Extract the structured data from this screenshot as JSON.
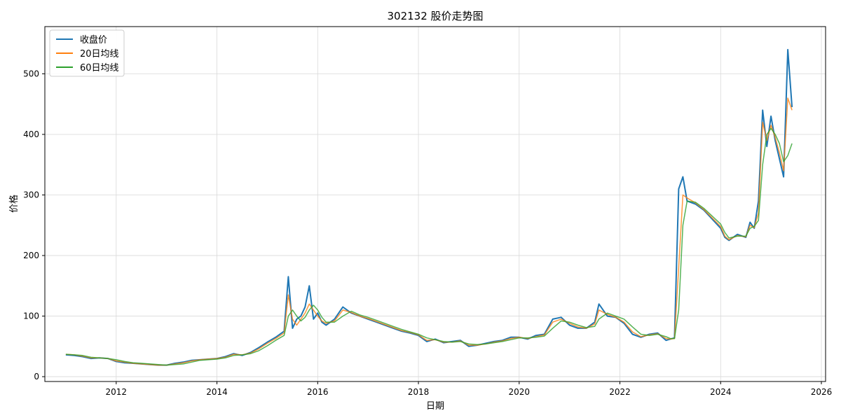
{
  "chart_data": {
    "type": "line",
    "title": "302132 股价走势图",
    "xlabel": "日期",
    "ylabel": "价格",
    "x_ticks": [
      "2012",
      "2014",
      "2016",
      "2018",
      "2020",
      "2022",
      "2024",
      "2026"
    ],
    "y_ticks": [
      0,
      100,
      200,
      300,
      400,
      500
    ],
    "xlim": [
      "2010-08",
      "2026-02"
    ],
    "ylim": [
      -8,
      578
    ],
    "grid": true,
    "legend_position": "top-left",
    "series": [
      {
        "name": "收盘价",
        "color": "#1f77b4",
        "x": [
          "2011-01",
          "2011-03",
          "2011-05",
          "2011-07",
          "2011-09",
          "2011-11",
          "2012-01",
          "2012-03",
          "2012-05",
          "2012-07",
          "2012-09",
          "2012-11",
          "2013-01",
          "2013-03",
          "2013-05",
          "2013-07",
          "2013-09",
          "2013-11",
          "2014-01",
          "2014-03",
          "2014-05",
          "2014-07",
          "2014-09",
          "2014-11",
          "2015-01",
          "2015-03",
          "2015-05",
          "2015-06",
          "2015-07",
          "2015-08",
          "2015-09",
          "2015-10",
          "2015-11",
          "2015-12",
          "2016-01",
          "2016-02",
          "2016-03",
          "2016-05",
          "2016-07",
          "2016-09",
          "2016-11",
          "2017-01",
          "2017-03",
          "2017-05",
          "2017-07",
          "2017-09",
          "2017-11",
          "2018-01",
          "2018-03",
          "2018-05",
          "2018-07",
          "2018-09",
          "2018-11",
          "2019-01",
          "2019-03",
          "2019-05",
          "2019-07",
          "2019-09",
          "2019-11",
          "2020-01",
          "2020-03",
          "2020-05",
          "2020-07",
          "2020-09",
          "2020-11",
          "2021-01",
          "2021-03",
          "2021-05",
          "2021-07",
          "2021-08",
          "2021-10",
          "2021-12",
          "2022-02",
          "2022-04",
          "2022-06",
          "2022-08",
          "2022-10",
          "2022-12",
          "2023-01",
          "2023-02",
          "2023-03",
          "2023-04",
          "2023-05",
          "2023-07",
          "2023-09",
          "2023-11",
          "2024-01",
          "2024-02",
          "2024-03",
          "2024-05",
          "2024-07",
          "2024-08",
          "2024-09",
          "2024-10",
          "2024-11",
          "2024-12",
          "2025-01",
          "2025-02",
          "2025-03",
          "2025-04",
          "2025-05",
          "2025-06"
        ],
        "y": [
          36,
          35,
          33,
          30,
          31,
          30,
          25,
          23,
          22,
          21,
          20,
          19,
          19,
          22,
          24,
          27,
          28,
          29,
          30,
          33,
          38,
          35,
          40,
          48,
          57,
          65,
          75,
          165,
          80,
          95,
          100,
          115,
          150,
          95,
          105,
          90,
          85,
          95,
          115,
          105,
          100,
          95,
          90,
          85,
          80,
          75,
          72,
          68,
          58,
          62,
          56,
          58,
          60,
          50,
          52,
          55,
          58,
          60,
          65,
          65,
          62,
          68,
          70,
          95,
          98,
          85,
          80,
          80,
          90,
          120,
          100,
          98,
          88,
          70,
          65,
          70,
          72,
          60,
          62,
          64,
          310,
          330,
          290,
          285,
          275,
          260,
          245,
          230,
          225,
          235,
          230,
          255,
          245,
          290,
          440,
          380,
          430,
          390,
          360,
          330,
          540,
          445
        ]
      },
      {
        "name": "20日均线",
        "color": "#ff7f0e",
        "x": [
          "2011-01",
          "2011-03",
          "2011-05",
          "2011-07",
          "2011-09",
          "2011-11",
          "2012-01",
          "2012-03",
          "2012-05",
          "2012-07",
          "2012-09",
          "2012-11",
          "2013-01",
          "2013-03",
          "2013-05",
          "2013-07",
          "2013-09",
          "2013-11",
          "2014-01",
          "2014-03",
          "2014-05",
          "2014-07",
          "2014-09",
          "2014-11",
          "2015-01",
          "2015-03",
          "2015-05",
          "2015-06",
          "2015-07",
          "2015-08",
          "2015-09",
          "2015-10",
          "2015-11",
          "2015-12",
          "2016-01",
          "2016-02",
          "2016-03",
          "2016-05",
          "2016-07",
          "2016-09",
          "2016-11",
          "2017-01",
          "2017-03",
          "2017-05",
          "2017-07",
          "2017-09",
          "2017-11",
          "2018-01",
          "2018-03",
          "2018-05",
          "2018-07",
          "2018-09",
          "2018-11",
          "2019-01",
          "2019-03",
          "2019-05",
          "2019-07",
          "2019-09",
          "2019-11",
          "2020-01",
          "2020-03",
          "2020-05",
          "2020-07",
          "2020-09",
          "2020-11",
          "2021-01",
          "2021-03",
          "2021-05",
          "2021-07",
          "2021-08",
          "2021-10",
          "2021-12",
          "2022-02",
          "2022-04",
          "2022-06",
          "2022-08",
          "2022-10",
          "2022-12",
          "2023-01",
          "2023-02",
          "2023-03",
          "2023-04",
          "2023-05",
          "2023-07",
          "2023-09",
          "2023-11",
          "2024-01",
          "2024-02",
          "2024-03",
          "2024-05",
          "2024-07",
          "2024-08",
          "2024-09",
          "2024-10",
          "2024-11",
          "2024-12",
          "2025-01",
          "2025-02",
          "2025-03",
          "2025-04",
          "2025-05",
          "2025-06"
        ],
        "y": [
          37,
          36,
          34,
          31,
          31,
          30,
          26,
          24,
          22,
          21,
          20,
          19,
          19,
          21,
          23,
          26,
          28,
          29,
          30,
          32,
          37,
          36,
          39,
          46,
          55,
          63,
          72,
          135,
          95,
          85,
          95,
          105,
          120,
          110,
          100,
          92,
          88,
          92,
          110,
          106,
          100,
          96,
          91,
          86,
          81,
          76,
          73,
          69,
          60,
          61,
          57,
          57,
          59,
          52,
          52,
          54,
          57,
          59,
          63,
          65,
          63,
          66,
          69,
          90,
          95,
          88,
          82,
          80,
          87,
          110,
          103,
          98,
          90,
          74,
          66,
          69,
          71,
          63,
          62,
          63,
          180,
          300,
          295,
          287,
          276,
          262,
          248,
          232,
          226,
          233,
          231,
          250,
          246,
          270,
          420,
          390,
          415,
          395,
          370,
          340,
          460,
          440
        ]
      },
      {
        "name": "60日均线",
        "color": "#2ca02c",
        "x": [
          "2011-01",
          "2011-03",
          "2011-05",
          "2011-07",
          "2011-09",
          "2011-11",
          "2012-01",
          "2012-03",
          "2012-05",
          "2012-07",
          "2012-09",
          "2012-11",
          "2013-01",
          "2013-03",
          "2013-05",
          "2013-07",
          "2013-09",
          "2013-11",
          "2014-01",
          "2014-03",
          "2014-05",
          "2014-07",
          "2014-09",
          "2014-11",
          "2015-01",
          "2015-03",
          "2015-05",
          "2015-06",
          "2015-07",
          "2015-08",
          "2015-09",
          "2015-10",
          "2015-11",
          "2015-12",
          "2016-01",
          "2016-02",
          "2016-03",
          "2016-05",
          "2016-07",
          "2016-09",
          "2016-11",
          "2017-01",
          "2017-03",
          "2017-05",
          "2017-07",
          "2017-09",
          "2017-11",
          "2018-01",
          "2018-03",
          "2018-05",
          "2018-07",
          "2018-09",
          "2018-11",
          "2019-01",
          "2019-03",
          "2019-05",
          "2019-07",
          "2019-09",
          "2019-11",
          "2020-01",
          "2020-03",
          "2020-05",
          "2020-07",
          "2020-09",
          "2020-11",
          "2021-01",
          "2021-03",
          "2021-05",
          "2021-07",
          "2021-08",
          "2021-10",
          "2021-12",
          "2022-02",
          "2022-04",
          "2022-06",
          "2022-08",
          "2022-10",
          "2022-12",
          "2023-01",
          "2023-02",
          "2023-03",
          "2023-04",
          "2023-05",
          "2023-07",
          "2023-09",
          "2023-11",
          "2024-01",
          "2024-02",
          "2024-03",
          "2024-05",
          "2024-07",
          "2024-08",
          "2024-09",
          "2024-10",
          "2024-11",
          "2024-12",
          "2025-01",
          "2025-02",
          "2025-03",
          "2025-04",
          "2025-05",
          "2025-06"
        ],
        "y": [
          37,
          36,
          35,
          32,
          31,
          30,
          28,
          25,
          23,
          22,
          21,
          20,
          19,
          20,
          21,
          24,
          27,
          28,
          29,
          31,
          35,
          36,
          38,
          43,
          51,
          60,
          68,
          100,
          110,
          100,
          92,
          98,
          110,
          118,
          110,
          98,
          90,
          90,
          100,
          108,
          102,
          98,
          93,
          88,
          83,
          78,
          74,
          70,
          64,
          61,
          58,
          57,
          58,
          54,
          53,
          54,
          56,
          58,
          61,
          64,
          64,
          65,
          67,
          80,
          92,
          90,
          85,
          81,
          83,
          95,
          105,
          100,
          95,
          82,
          70,
          68,
          70,
          66,
          63,
          63,
          110,
          250,
          290,
          288,
          278,
          265,
          252,
          238,
          229,
          232,
          232,
          245,
          248,
          258,
          350,
          400,
          410,
          400,
          385,
          355,
          365,
          385
        ]
      }
    ]
  }
}
